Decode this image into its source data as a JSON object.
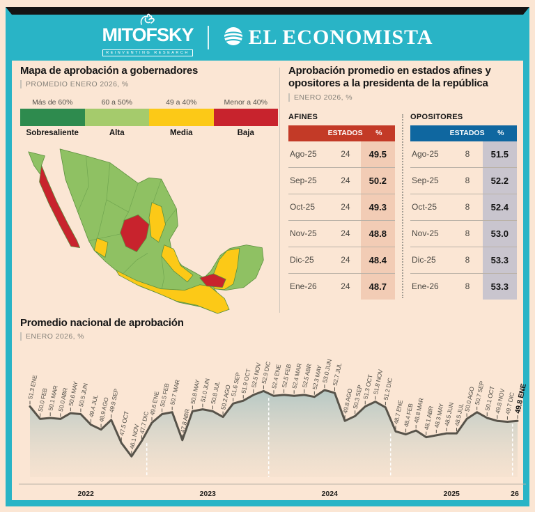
{
  "page": {
    "background": "#fbe6d4",
    "frame_color": "#29b4c6",
    "topbar_color": "#141414"
  },
  "header": {
    "mitofsky_label": "MITOFSKY",
    "mitofsky_tagline": "REINVENTING RESEARCH",
    "economista_label": "EL ECONOMISTA"
  },
  "map_panel": {
    "title": "Mapa de aprobación a gobernadores",
    "subtitle": "PROMEDIO ENERO 2026, %",
    "legend": [
      {
        "range": "Más de 60%",
        "label": "Sobresaliente",
        "color": "#2e8b4e"
      },
      {
        "range": "60 a 50%",
        "label": "Alta",
        "color": "#a5cb6c"
      },
      {
        "range": "49 a 40%",
        "label": "Media",
        "color": "#fcc917"
      },
      {
        "range": "Menor a 40%",
        "label": "Baja",
        "color": "#c8232d"
      }
    ],
    "map_colors": {
      "base_green": "#8fc163",
      "yellow": "#fcc917",
      "red": "#c8232d",
      "border": "#5a8f3d"
    },
    "red_states": [
      "Baja California Sur",
      "Zacatecas",
      "Tabasco"
    ],
    "yellow_states": [
      "Nuevo León",
      "Nayarit",
      "Veracruz",
      "Guerrero",
      "Oaxaca",
      "Chiapas",
      "Campeche"
    ]
  },
  "tables_panel": {
    "title_line1": "Aprobación promedio en estados afines y",
    "title_line2": "opositores a la presidenta de la república",
    "subtitle": "ENERO 2026, %",
    "afines": {
      "label": "AFINES",
      "header_color": "#c33a27",
      "tint_color": "#f2ccb5",
      "columns": [
        "ESTADOS",
        "%"
      ],
      "rows": [
        {
          "month": "Ago-25",
          "estados": "24",
          "pct": "49.5"
        },
        {
          "month": "Sep-25",
          "estados": "24",
          "pct": "50.2"
        },
        {
          "month": "Oct-25",
          "estados": "24",
          "pct": "49.3"
        },
        {
          "month": "Nov-25",
          "estados": "24",
          "pct": "48.8"
        },
        {
          "month": "Dic-25",
          "estados": "24",
          "pct": "48.4"
        },
        {
          "month": "Ene-26",
          "estados": "24",
          "pct": "48.7"
        }
      ]
    },
    "opositores": {
      "label": "OPOSITORES",
      "header_color": "#0f67a0",
      "tint_color": "#c9c5ce",
      "columns": [
        "ESTADOS",
        "%"
      ],
      "rows": [
        {
          "month": "Ago-25",
          "estados": "8",
          "pct": "51.5"
        },
        {
          "month": "Sep-25",
          "estados": "8",
          "pct": "52.2"
        },
        {
          "month": "Oct-25",
          "estados": "8",
          "pct": "52.4"
        },
        {
          "month": "Nov-25",
          "estados": "8",
          "pct": "53.0"
        },
        {
          "month": "Dic-25",
          "estados": "8",
          "pct": "53.3"
        },
        {
          "month": "Ene-26",
          "estados": "8",
          "pct": "53.3"
        }
      ]
    }
  },
  "chart_panel": {
    "title": "Promedio nacional de aprobación",
    "subtitle": "ENERO 2026, %"
  },
  "chart_data": {
    "type": "area",
    "title": "Promedio nacional de aprobación",
    "subtitle": "ENERO 2026, %",
    "ylim": [
      46.0,
      53.2
    ],
    "grid": false,
    "line_color": "#57534a",
    "fill_top_color": "#b3c7c4",
    "fill_bottom_color": "#f3e0cd",
    "divider_color": "#ffffff",
    "years_axis": [
      "2022",
      "2023",
      "2024",
      "2025",
      "26"
    ],
    "x": [
      "ENE",
      "FEB",
      "MAR",
      "ABR",
      "MAY",
      "JUN",
      "JUL",
      "AGO",
      "SEP",
      "OCT",
      "NOV",
      "DIC",
      "ENE",
      "FEB",
      "MAR",
      "ABR",
      "MAY",
      "JUN",
      "JUL",
      "AGO",
      "SEP",
      "OCT",
      "NOV",
      "DIC",
      "ENE",
      "FEB",
      "MAR",
      "ABR",
      "MAY",
      "JUN",
      "JUL",
      "AGO",
      "SEP",
      "OCT",
      "NOV",
      "DIC",
      "ENE",
      "FEB",
      "MAR",
      "ABR",
      "MAY",
      "JUN",
      "JUL",
      "AGO",
      "SEP",
      "OCT",
      "NOV",
      "DIC",
      "ENE"
    ],
    "values": [
      51.3,
      50.0,
      50.1,
      50.0,
      50.6,
      50.5,
      49.4,
      48.9,
      49.9,
      47.5,
      46.1,
      47.7,
      49.6,
      50.5,
      50.7,
      47.8,
      50.8,
      51.0,
      50.8,
      50.2,
      51.6,
      51.9,
      52.5,
      52.9,
      52.4,
      52.5,
      52.4,
      52.5,
      52.3,
      53.0,
      52.7,
      49.8,
      50.3,
      51.3,
      51.8,
      51.2,
      48.7,
      48.4,
      48.8,
      48.1,
      48.3,
      48.5,
      48.5,
      50.0,
      50.7,
      50.1,
      49.8,
      49.7,
      49.8
    ]
  }
}
